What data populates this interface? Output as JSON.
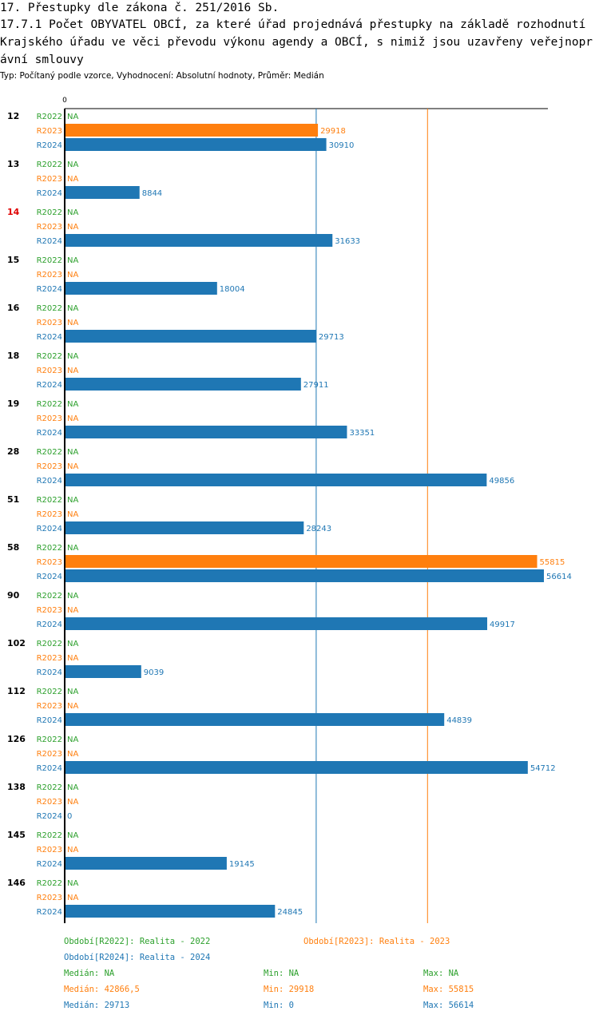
{
  "colors": {
    "r2022": "#2ca02c",
    "r2023": "#ff7f0e",
    "r2024": "#1f77b4",
    "highlight": "#e00000"
  },
  "header": {
    "title": "17. Přestupky dle zákona č. 251/2016 Sb.",
    "subtitle": "17.7.1 Počet OBYVATEL OBCÍ, za které úřad projednává přestupky na základě rozhodnutí Krajského úřadu ve věci převodu výkonu agendy a OBCÍ, s nimiž jsou uzavřeny veřejnoprávní smlouvy",
    "type_line": "Typ: Počítaný podle vzorce, Vyhodnocení: Absolutní hodnoty, Průměr: Medián"
  },
  "chart_data": {
    "type": "bar",
    "orientation": "horizontal",
    "axis_zero_label": "0",
    "xlim": [
      0,
      56614
    ],
    "missing_label": "NA",
    "highlight_category": "14",
    "categories": [
      "12",
      "13",
      "14",
      "15",
      "16",
      "18",
      "19",
      "28",
      "51",
      "58",
      "90",
      "102",
      "112",
      "126",
      "138",
      "145",
      "146"
    ],
    "series": [
      {
        "name": "R2022",
        "color": "#2ca02c",
        "values": [
          null,
          null,
          null,
          null,
          null,
          null,
          null,
          null,
          null,
          null,
          null,
          null,
          null,
          null,
          null,
          null,
          null
        ]
      },
      {
        "name": "R2023",
        "color": "#ff7f0e",
        "values": [
          29918,
          null,
          null,
          null,
          null,
          null,
          null,
          null,
          null,
          55815,
          null,
          null,
          null,
          null,
          null,
          null,
          null
        ]
      },
      {
        "name": "R2024",
        "color": "#1f77b4",
        "values": [
          30910,
          8844,
          31633,
          18004,
          29713,
          27911,
          33351,
          49856,
          28243,
          56614,
          49917,
          9039,
          44839,
          54712,
          0,
          19145,
          24845
        ]
      }
    ],
    "median_lines": [
      {
        "series": "R2024",
        "value": 29713
      },
      {
        "series": "R2023",
        "value": 42866.5
      }
    ]
  },
  "legend": {
    "r2022_label": "Období[R2022]: Realita - 2022",
    "r2023_label": "Období[R2023]: Realita - 2023",
    "r2024_label": "Období[R2024]: Realita - 2024",
    "stats": {
      "r2022": {
        "median": "Medián: NA",
        "min": "Min: NA",
        "max": "Max: NA"
      },
      "r2023": {
        "median": "Medián: 42866,5",
        "min": "Min: 29918",
        "max": "Max: 55815"
      },
      "r2024": {
        "median": "Medián: 29713",
        "min": "Min: 0",
        "max": "Max: 56614"
      }
    }
  }
}
